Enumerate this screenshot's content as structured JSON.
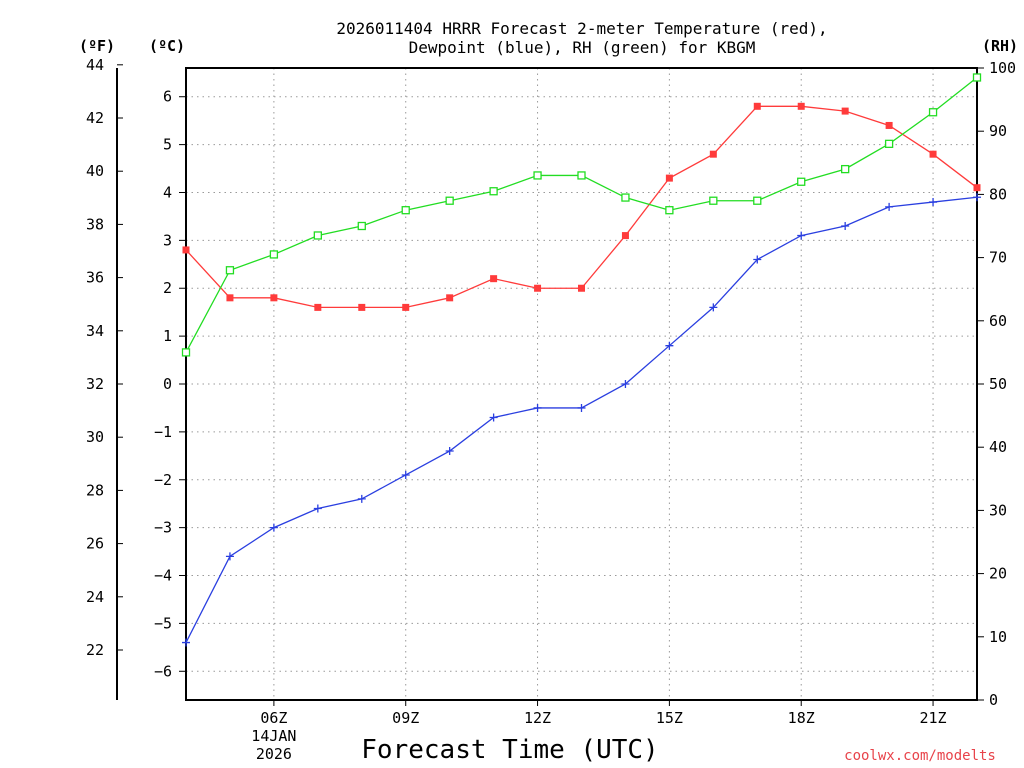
{
  "chart_data": {
    "type": "line",
    "title_line1": "2026011404 HRRR Forecast 2-meter Temperature (red),",
    "title_line2": "Dewpoint (blue), RH (green) for KBGM",
    "xlabel": "Forecast Time (UTC)",
    "credit": "coolwx.com/modelts",
    "left_outer_axis": {
      "label": "(ºF)",
      "ticks": [
        "44",
        "42",
        "40",
        "38",
        "36",
        "34",
        "32",
        "30",
        "28",
        "26",
        "24",
        "22"
      ],
      "values": [
        44,
        42,
        40,
        38,
        36,
        34,
        32,
        30,
        28,
        26,
        24,
        22
      ]
    },
    "left_inner_axis": {
      "label": "(ºC)",
      "ticks": [
        "6",
        "5",
        "4",
        "3",
        "2",
        "1",
        "0",
        "−1",
        "−2",
        "−3",
        "−4",
        "−5",
        "−6"
      ],
      "values": [
        6,
        5,
        4,
        3,
        2,
        1,
        0,
        -1,
        -2,
        -3,
        -4,
        -5,
        -6
      ],
      "ylim": [
        -6.6,
        6.6
      ]
    },
    "right_axis": {
      "label": "(RH)",
      "ticks": [
        "100",
        "90",
        "80",
        "70",
        "60",
        "50",
        "40",
        "30",
        "20",
        "10",
        "0"
      ],
      "values": [
        100,
        90,
        80,
        70,
        60,
        50,
        40,
        30,
        20,
        10,
        0
      ],
      "ylim": [
        0,
        100
      ]
    },
    "x_hours": [
      4,
      5,
      6,
      7,
      8,
      9,
      10,
      11,
      12,
      13,
      14,
      15,
      16,
      17,
      18,
      19,
      20,
      21,
      22
    ],
    "xlim": [
      4,
      22
    ],
    "x_ticks": [
      {
        "hour": 6,
        "label": "06Z",
        "date": "14JAN",
        "year": "2026"
      },
      {
        "hour": 9,
        "label": "09Z"
      },
      {
        "hour": 12,
        "label": "12Z"
      },
      {
        "hour": 15,
        "label": "15Z"
      },
      {
        "hour": 18,
        "label": "18Z"
      },
      {
        "hour": 21,
        "label": "21Z"
      }
    ],
    "series": [
      {
        "name": "2-meter Temperature",
        "unit": "C",
        "color": "#ff3b3b",
        "marker": "filled-square",
        "values": [
          2.8,
          1.8,
          1.8,
          1.6,
          1.6,
          1.6,
          1.8,
          2.2,
          2.0,
          2.0,
          3.1,
          4.3,
          4.8,
          5.8,
          5.8,
          5.7,
          5.4,
          4.8,
          4.1
        ]
      },
      {
        "name": "Dewpoint",
        "unit": "C",
        "color": "#2a3fe0",
        "marker": "plus",
        "values": [
          -5.4,
          -3.6,
          -3.0,
          -2.6,
          -2.4,
          -1.9,
          -1.4,
          -0.7,
          -0.5,
          -0.5,
          0.0,
          0.8,
          1.6,
          2.6,
          3.1,
          3.3,
          3.7,
          3.8,
          3.9
        ]
      },
      {
        "name": "RH",
        "unit": "%",
        "color": "#22dd22",
        "marker": "open-square",
        "values": [
          55,
          68,
          70.5,
          73.5,
          75,
          77.5,
          79,
          80.5,
          83,
          83,
          79.5,
          77.5,
          79,
          79,
          82,
          84,
          88,
          93,
          98.5
        ]
      }
    ]
  }
}
